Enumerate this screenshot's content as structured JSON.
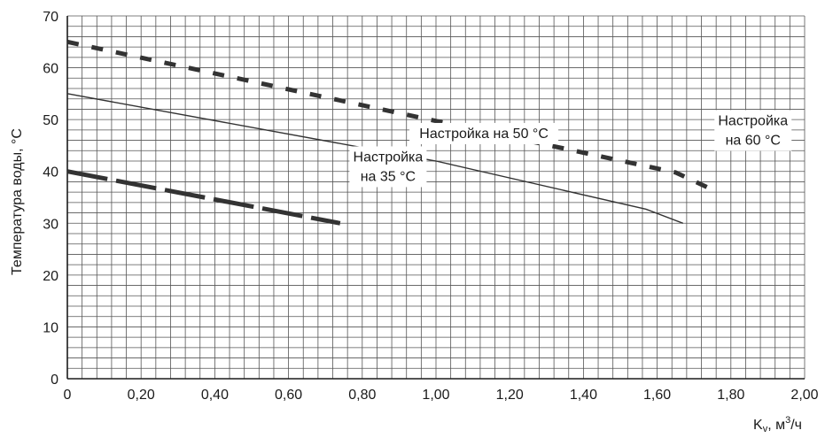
{
  "chart_data": {
    "type": "line",
    "title": "",
    "xlabel": "K",
    "xlabel_sub": "v",
    "xlabel_tail": ", м",
    "xlabel_sup": "3",
    "xlabel_end": "/ч",
    "ylabel": "Температура воды, °C",
    "xlim": [
      0,
      2.0
    ],
    "ylim": [
      0,
      70
    ],
    "x_ticks": [
      0,
      0.2,
      0.4,
      0.6,
      0.8,
      1.0,
      1.2,
      1.4,
      1.6,
      1.8,
      2.0
    ],
    "x_tick_labels": [
      "0",
      "0,20",
      "0,40",
      "0,60",
      "0,80",
      "1,00",
      "1,20",
      "1,40",
      "1,60",
      "1,80",
      "2,00"
    ],
    "y_ticks": [
      0,
      10,
      20,
      30,
      40,
      50,
      60,
      70
    ],
    "y_tick_labels": [
      "0",
      "10",
      "20",
      "30",
      "40",
      "50",
      "60",
      "70"
    ],
    "minor_x_step": 0.04,
    "minor_y_step": 2,
    "grid": true,
    "series": [
      {
        "name": "Настройка на 35 °C",
        "label_lines": [
          "Настройка",
          "на 35 °C"
        ],
        "style": "long-dash",
        "x": [
          0,
          0.74
        ],
        "y": [
          40,
          30
        ]
      },
      {
        "name": "Настройка на 50 °C",
        "label_lines": [
          "Настройка на 50 °C"
        ],
        "style": "solid",
        "x": [
          0,
          1.0,
          1.57,
          1.67
        ],
        "y": [
          55,
          42,
          32.7,
          30
        ]
      },
      {
        "name": "Настройка на 60 °C",
        "label_lines": [
          "Настройка",
          "на 60 °C"
        ],
        "style": "short-dash",
        "x": [
          0,
          1.65,
          1.74
        ],
        "y": [
          65,
          39.8,
          36.8
        ]
      }
    ],
    "colors": {
      "grid": "#555555",
      "axis": "#1a1a1a",
      "line": "#333333"
    }
  }
}
